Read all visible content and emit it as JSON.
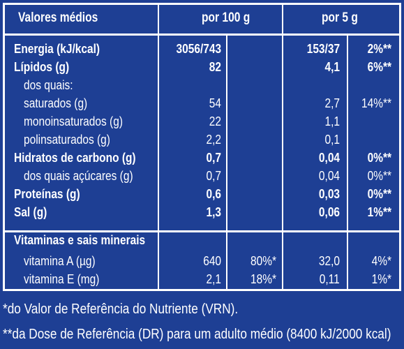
{
  "headers": {
    "col_name": "Valores médios",
    "col_100g": "por 100 g",
    "col_5g": "por 5 g"
  },
  "rows": [
    {
      "name": "Energia (kJ/kcal)",
      "v100": "3056/743",
      "p100": "",
      "v5": "153/37",
      "p5": "2%**",
      "bold": true
    },
    {
      "name": "Lípidos (g)",
      "v100": "82",
      "p100": "",
      "v5": "4,1",
      "p5": "6%**",
      "bold": true
    },
    {
      "name": "dos quais:",
      "v100": "",
      "p100": "",
      "v5": "",
      "p5": "",
      "bold": false
    },
    {
      "name": "saturados (g)",
      "v100": "54",
      "p100": "",
      "v5": "2,7",
      "p5": "14%**",
      "bold": false
    },
    {
      "name": "monoinsaturados (g)",
      "v100": "22",
      "p100": "",
      "v5": "1,1",
      "p5": "",
      "bold": false
    },
    {
      "name": "polinsaturados (g)",
      "v100": "2,2",
      "p100": "",
      "v5": "0,1",
      "p5": "",
      "bold": false
    },
    {
      "name": "Hidratos de carbono (g)",
      "v100": "0,7",
      "p100": "",
      "v5": "0,04",
      "p5": "0%**",
      "bold": true
    },
    {
      "name": "dos quais açúcares (g)",
      "v100": "0,7",
      "p100": "",
      "v5": "0,04",
      "p5": "0%**",
      "bold": false
    },
    {
      "name": "Proteínas (g)",
      "v100": "0,6",
      "p100": "",
      "v5": "0,03",
      "p5": "0%**",
      "bold": true
    },
    {
      "name": "Sal (g)",
      "v100": "1,3",
      "p100": "",
      "v5": "0,06",
      "p5": "1%**",
      "bold": true
    }
  ],
  "vitamins_header": "Vitaminas e sais minerais",
  "vitamins": [
    {
      "name": "vitamina A (µg)",
      "v100": "640",
      "p100": "80%*",
      "v5": "32,0",
      "p5": "4%*"
    },
    {
      "name": "vitamina E (mg)",
      "v100": "2,1",
      "p100": "18%*",
      "v5": "0,11",
      "p5": "1%*"
    }
  ],
  "footnotes": [
    "*do Valor de Referência do Nutriente (VRN).",
    "**da Dose de Referência (DR) para um adulto médio (8400 kJ/2000 kcal)"
  ]
}
